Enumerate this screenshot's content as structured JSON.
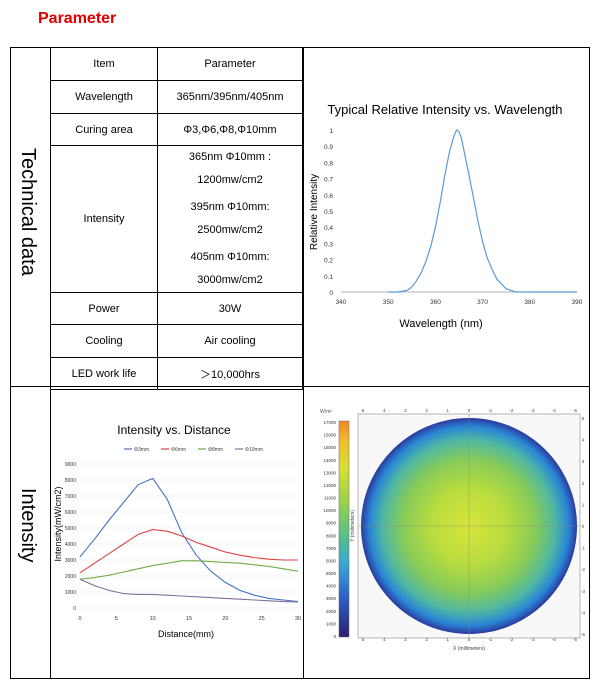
{
  "heading": "Parameter",
  "sections": {
    "technical": "Technical data",
    "intensity": "Intensity"
  },
  "table": {
    "header": {
      "item": "Item",
      "parameter": "Parameter"
    },
    "rows": [
      {
        "item": "Wavelength",
        "value": "365nm/395nm/405nm"
      },
      {
        "item": "Curing area",
        "value": "Φ3,Φ6,Φ8,Φ10mm"
      },
      {
        "item": "Intensity",
        "lines": [
          "365nm Φ10mm :",
          "1200mw/cm2",
          "395nm Φ10mm:",
          "2500mw/cm2",
          "405nm Φ10mm:",
          "3000mw/cm2"
        ]
      },
      {
        "item": "Power",
        "value": "30W"
      },
      {
        "item": "Cooling",
        "value": "Air cooling"
      },
      {
        "item": "LED work life",
        "value": "＞10,000hrs"
      }
    ]
  },
  "chart_data": [
    {
      "type": "line",
      "title": "Typical Relative Intensity vs. Wavelength",
      "xlabel": "Wavelength (nm)",
      "ylabel": "Relative Intensity",
      "xlim": [
        340,
        390
      ],
      "ylim": [
        0,
        1
      ],
      "xticks": [
        "340",
        "350",
        "360",
        "370",
        "380",
        "390"
      ],
      "yticks": [
        "0",
        "0.1",
        "0.2",
        "0.3",
        "0.4",
        "0.5",
        "0.6",
        "0.7",
        "0.8",
        "0.9",
        "1"
      ],
      "color": "#5b9bd5",
      "x": [
        350,
        352,
        354,
        355,
        356,
        357,
        358,
        359,
        360,
        361,
        362,
        363,
        364,
        364.5,
        365,
        365.5,
        366,
        367,
        368,
        369,
        370,
        371,
        372,
        373,
        374,
        375,
        376,
        377,
        378,
        380,
        390
      ],
      "y": [
        0,
        0.0,
        0.01,
        0.03,
        0.07,
        0.12,
        0.19,
        0.28,
        0.4,
        0.55,
        0.72,
        0.87,
        0.97,
        1.0,
        0.99,
        0.95,
        0.88,
        0.74,
        0.59,
        0.44,
        0.31,
        0.21,
        0.14,
        0.08,
        0.05,
        0.02,
        0.01,
        0.0,
        0,
        0,
        0
      ]
    },
    {
      "type": "line",
      "title": "Intensity vs. Distance",
      "xlabel": "Distance(mm)",
      "ylabel": "Intensity(mW/cm2)",
      "xlim": [
        0,
        30
      ],
      "ylim": [
        0,
        9000
      ],
      "xticks": [
        "0",
        "5",
        "10",
        "15",
        "20",
        "25",
        "30"
      ],
      "yticks": [
        "0",
        "1000",
        "2000",
        "3000",
        "4000",
        "5000",
        "6000",
        "7000",
        "8000",
        "9000"
      ],
      "x": [
        0,
        2,
        4,
        6,
        8,
        10,
        12,
        14,
        16,
        18,
        20,
        22,
        24,
        26,
        28,
        30
      ],
      "series": [
        {
          "name": "Φ3mm",
          "color": "#4472c4",
          "values": [
            3200,
            4300,
            5500,
            6600,
            7700,
            8100,
            6800,
            4700,
            3300,
            2300,
            1600,
            1100,
            800,
            600,
            500,
            400
          ]
        },
        {
          "name": "Φ6mm",
          "color": "#e04040",
          "values": [
            2200,
            2800,
            3400,
            4000,
            4600,
            4900,
            4800,
            4500,
            4100,
            3800,
            3500,
            3300,
            3150,
            3050,
            3000,
            3000
          ]
        },
        {
          "name": "Φ8mm",
          "color": "#70ad47",
          "values": [
            1800,
            1900,
            2050,
            2250,
            2450,
            2650,
            2800,
            2950,
            2950,
            2900,
            2850,
            2800,
            2700,
            2600,
            2450,
            2300
          ]
        },
        {
          "name": "Φ10mm",
          "color": "#7f6f9f",
          "values": [
            1800,
            1400,
            1100,
            900,
            850,
            850,
            800,
            750,
            700,
            650,
            600,
            550,
            500,
            450,
            400,
            380
          ]
        }
      ]
    },
    {
      "type": "heatmap",
      "colorbar_unit": "W/m²",
      "colorbar_ticks": [
        "0",
        "1000",
        "2000",
        "3000",
        "4000",
        "5000",
        "6000",
        "7000",
        "8000",
        "9000",
        "10000",
        "11000",
        "12000",
        "13000",
        "14000",
        "15000",
        "16000",
        "17000"
      ],
      "x_ticks": [
        "5",
        "4",
        "3",
        "2",
        "1",
        "0",
        "-1",
        "-2",
        "-3",
        "-4",
        "-5"
      ],
      "y_ticks": [
        "5",
        "4",
        "3",
        "2",
        "1",
        "0",
        "-1",
        "-2",
        "-3",
        "-4",
        "-5"
      ],
      "xlabel": "X (millimeters)",
      "ylabel": "Y (millimeters)"
    }
  ]
}
